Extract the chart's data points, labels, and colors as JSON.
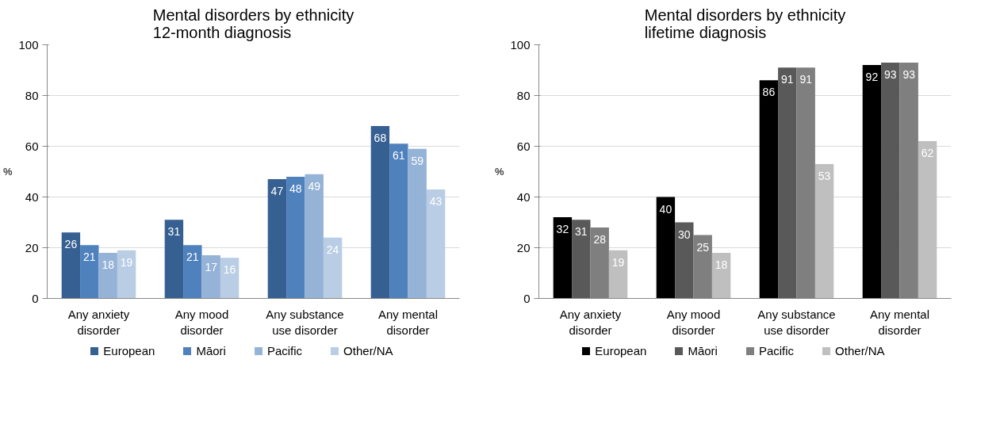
{
  "chart_data": [
    {
      "type": "bar",
      "title": "Mental disorders by ethnicity\n12-month diagnosis",
      "ylabel": "%",
      "categories": [
        "Any anxiety\ndisorder",
        "Any mood\ndisorder",
        "Any substance\nuse disorder",
        "Any mental\ndisorder"
      ],
      "ylim": [
        0,
        100
      ],
      "yticks": [
        0,
        20,
        40,
        60,
        80,
        100
      ],
      "grid": "y",
      "legend": "bottom",
      "data_labels": true,
      "series": [
        {
          "name": "European",
          "color": "#376092",
          "values": [
            26,
            31,
            47,
            68
          ]
        },
        {
          "name": "Māori",
          "color": "#4f81bd",
          "values": [
            21,
            21,
            48,
            61
          ]
        },
        {
          "name": "Pacific",
          "color": "#95b3d7",
          "values": [
            18,
            17,
            49,
            59
          ]
        },
        {
          "name": "Other/NA",
          "color": "#b9cde5",
          "values": [
            19,
            16,
            24,
            43
          ]
        }
      ]
    },
    {
      "type": "bar",
      "title": "Mental disorders by ethnicity\nlifetime diagnosis",
      "ylabel": "%",
      "categories": [
        "Any anxiety\ndisorder",
        "Any mood\ndisorder",
        "Any substance\nuse disorder",
        "Any mental\ndisorder"
      ],
      "ylim": [
        0,
        100
      ],
      "yticks": [
        0,
        20,
        40,
        60,
        80,
        100
      ],
      "grid": "y",
      "legend": "bottom",
      "data_labels": true,
      "series": [
        {
          "name": "European",
          "color": "#000000",
          "values": [
            32,
            40,
            86,
            92
          ]
        },
        {
          "name": "Māori",
          "color": "#595959",
          "values": [
            31,
            30,
            91,
            93
          ]
        },
        {
          "name": "Pacific",
          "color": "#7f7f7f",
          "values": [
            28,
            25,
            91,
            93
          ]
        },
        {
          "name": "Other/NA",
          "color": "#bfbfbf",
          "values": [
            19,
            18,
            53,
            62
          ]
        }
      ]
    }
  ]
}
